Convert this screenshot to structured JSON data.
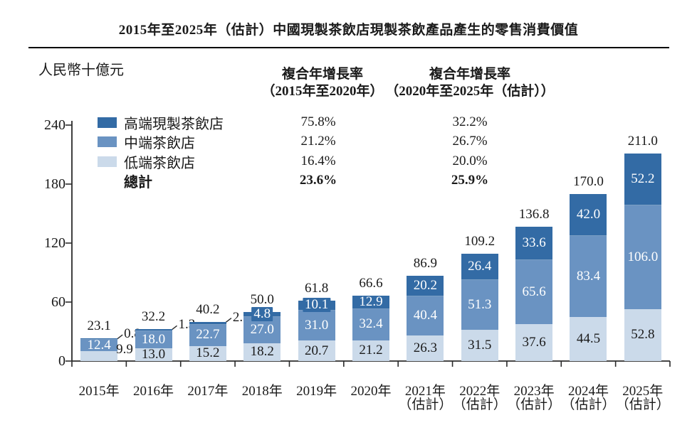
{
  "chart_data": {
    "type": "bar",
    "variant": "stacked",
    "title": "2015年至2025年（估計）中國現製茶飲店現製茶飲產品產生的零售消費價值",
    "unit_label": "人民幣十億元",
    "y_axis": {
      "ticks": [
        0,
        60,
        120,
        180,
        240
      ],
      "max": 240,
      "grid": false
    },
    "categories": [
      {
        "line1": "2015年",
        "line2": ""
      },
      {
        "line1": "2016年",
        "line2": ""
      },
      {
        "line1": "2017年",
        "line2": ""
      },
      {
        "line1": "2018年",
        "line2": ""
      },
      {
        "line1": "2019年",
        "line2": ""
      },
      {
        "line1": "2020年",
        "line2": ""
      },
      {
        "line1": "2021年",
        "line2": "（估計）"
      },
      {
        "line1": "2022年",
        "line2": "（估計）"
      },
      {
        "line1": "2023年",
        "line2": "（估計）"
      },
      {
        "line1": "2024年",
        "line2": "（估計）"
      },
      {
        "line1": "2025年",
        "line2": "（估計）"
      }
    ],
    "series": [
      {
        "name": "高端現製茶飲店",
        "color": "#336BA5",
        "values": [
          0.8,
          1.3,
          2.2,
          4.8,
          10.1,
          12.9,
          20.2,
          26.4,
          33.6,
          42.0,
          52.2
        ],
        "cagr_2015_2020": "75.8%",
        "cagr_2020_2025": "32.2%"
      },
      {
        "name": "中端茶飲店",
        "color": "#6A93C2",
        "values": [
          12.4,
          18.0,
          22.7,
          27.0,
          31.0,
          32.4,
          40.4,
          51.3,
          65.6,
          83.4,
          106.0
        ],
        "cagr_2015_2020": "21.2%",
        "cagr_2020_2025": "26.7%"
      },
      {
        "name": "低端茶飲店",
        "color": "#CBDAEA",
        "values": [
          9.9,
          13.0,
          15.2,
          18.2,
          20.7,
          21.2,
          26.3,
          31.5,
          37.6,
          44.5,
          52.8
        ],
        "cagr_2015_2020": "16.4%",
        "cagr_2020_2025": "20.0%"
      }
    ],
    "totals": [
      23.1,
      32.2,
      40.2,
      50.0,
      61.8,
      66.6,
      86.9,
      109.2,
      136.8,
      170.0,
      211.0
    ],
    "total_row": {
      "label": "總計",
      "cagr_2015_2020": "23.6%",
      "cagr_2020_2025": "25.9%"
    },
    "cagr_columns": [
      {
        "line1": "複合年增長率",
        "line2": "（2015年至2020年）"
      },
      {
        "line1": "複合年增長率",
        "line2": "（2020年至2025年（估計））"
      }
    ],
    "callouts": {
      "high_outside": [
        0,
        1,
        2
      ],
      "low_outside": [
        0
      ]
    },
    "colors": {
      "axis": "#2b2b2b",
      "text": "#1a1a1a",
      "label_on_bar": "#ffffff"
    },
    "legend_position": "top-left"
  }
}
